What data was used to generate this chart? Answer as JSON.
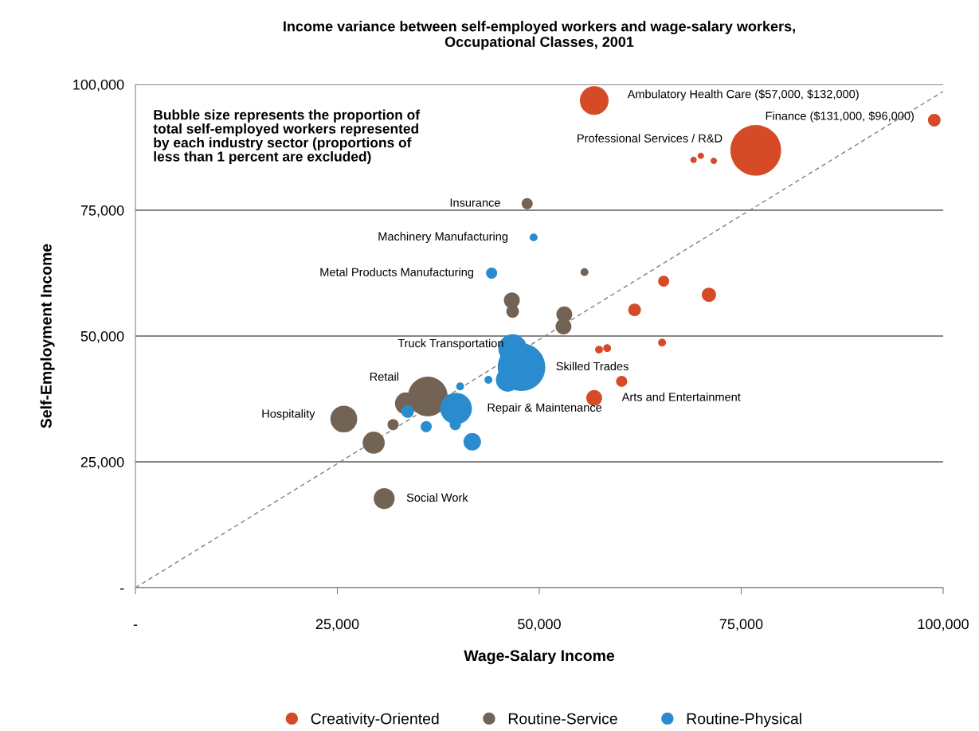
{
  "chart_data": {
    "type": "bubble",
    "title": "Income variance between self-employed workers and wage-salary workers,\nOccupational Classes, 2001",
    "xlabel": "Wage-Salary Income",
    "ylabel": "Self-Employment Income",
    "xlim": [
      0,
      100000
    ],
    "ylim": [
      0,
      100000
    ],
    "xticks": [
      {
        "value": 0,
        "label": "-"
      },
      {
        "value": 25000,
        "label": "25,000"
      },
      {
        "value": 50000,
        "label": "50,000"
      },
      {
        "value": 75000,
        "label": "75,000"
      },
      {
        "value": 100000,
        "label": "100,000"
      }
    ],
    "yticks": [
      {
        "value": 0,
        "label": "-"
      },
      {
        "value": 25000,
        "label": "25,000"
      },
      {
        "value": 50000,
        "label": "50,000"
      },
      {
        "value": 75000,
        "label": "75,000"
      },
      {
        "value": 100000,
        "label": "100,000"
      }
    ],
    "grid": "y",
    "legend": "bottom",
    "series": [
      {
        "name": "Creativity-Oriented",
        "color": "#d54b27",
        "x": [
          56800,
          98900,
          76800,
          69100,
          70000,
          71600,
          65400,
          71000,
          61800,
          57400,
          58400,
          65200,
          60200,
          56800
        ],
        "values": [
          96800,
          92900,
          86900,
          85000,
          85800,
          84800,
          60900,
          58200,
          55200,
          47300,
          47600,
          48700,
          41000,
          37700
        ],
        "sizes": [
          0.32,
          0.0625,
          1,
          0.016,
          0.016,
          0.016,
          0.048,
          0.079,
          0.0625,
          0.024,
          0.024,
          0.024,
          0.048,
          0.098
        ]
      },
      {
        "name": "Routine-Service",
        "color": "#736354",
        "x": [
          48500,
          55600,
          46600,
          46700,
          53100,
          53000,
          36200,
          33500,
          25800,
          31900,
          29500,
          30800
        ],
        "values": [
          76300,
          62700,
          57100,
          54900,
          54300,
          51900,
          38000,
          36600,
          33500,
          32400,
          28800,
          17700
        ],
        "sizes": [
          0.048,
          0.024,
          0.098,
          0.0625,
          0.098,
          0.098,
          0.61,
          0.19,
          0.28,
          0.048,
          0.19,
          0.17
        ]
      },
      {
        "name": "Routine-Physical",
        "color": "#2a8ccf",
        "x": [
          49300,
          44100,
          46700,
          47800,
          46100,
          43700,
          40200,
          39700,
          39600,
          33700,
          36000,
          41700
        ],
        "values": [
          69600,
          62500,
          47500,
          43800,
          41300,
          41300,
          40000,
          35600,
          32400,
          35000,
          32000,
          29000
        ],
        "sizes": [
          0.024,
          0.048,
          0.32,
          0.88,
          0.22,
          0.024,
          0.024,
          0.39,
          0.048,
          0.0625,
          0.048,
          0.12
        ]
      },
      {
        "type": "line",
        "color": "#808080",
        "line_style": "dashed",
        "marker": "none",
        "x": [
          0,
          100000
        ],
        "values": [
          0,
          98600
        ]
      }
    ],
    "annotations": [
      "Bubble size represents the proportion of\ntotal self-employed workers represented\nby each industry sector (proportions of\nless than 1 percent are excluded)",
      {
        "text": "Ambulatory Health Care ($57,000, $132,000)",
        "x": 56800,
        "y": 96800
      },
      {
        "text": "Finance ($131,000, $96,000)",
        "x": 98900,
        "y": 92900
      },
      {
        "text": "Professional Services / R&D",
        "x": 76800,
        "y": 86900
      },
      {
        "text": "Insurance",
        "x": 48500,
        "y": 76300
      },
      {
        "text": "Machinery Manufacturing",
        "x": 49300,
        "y": 69600
      },
      {
        "text": "Metal Products Manufacturing",
        "x": 44100,
        "y": 62500
      },
      {
        "text": "Truck Transportation",
        "x": 46700,
        "y": 47500
      },
      {
        "text": "Skilled Trades",
        "x": 47800,
        "y": 43800
      },
      {
        "text": "Retail",
        "x": 36200,
        "y": 38000
      },
      {
        "text": "Repair & Maintenance",
        "x": 39700,
        "y": 35600
      },
      {
        "text": "Hospitality",
        "x": 25800,
        "y": 33500
      },
      {
        "text": "Arts and Entertainment",
        "x": 56800,
        "y": 37700
      },
      {
        "text": "Social Work",
        "x": 30800,
        "y": 17700
      }
    ]
  }
}
